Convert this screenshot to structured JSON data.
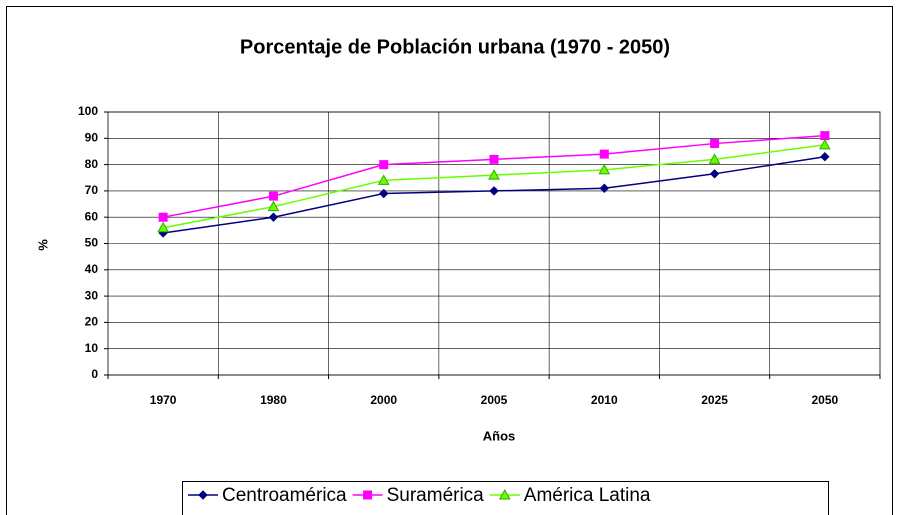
{
  "chart_data": {
    "type": "line",
    "title": "Porcentaje de Población urbana (1970 - 2050)",
    "x_label": "Años",
    "y_label": "%",
    "categories": [
      "1970",
      "1980",
      "2000",
      "2005",
      "2010",
      "2025",
      "2050"
    ],
    "series": [
      {
        "name": "Centroamérica",
        "color": "#000080",
        "marker": "diamond",
        "values": [
          54,
          60,
          69,
          70,
          71,
          76.5,
          83
        ]
      },
      {
        "name": "Suramérica",
        "color": "#ff00ff",
        "marker": "square",
        "values": [
          60,
          68,
          80,
          82,
          84,
          88,
          91
        ]
      },
      {
        "name": "América Latina",
        "color": "#66ff00",
        "marker": "triangle",
        "values": [
          56,
          64,
          74,
          76,
          78,
          82,
          87.5
        ]
      }
    ],
    "ylim": [
      0,
      100
    ],
    "yticks": [
      0,
      10,
      20,
      30,
      40,
      50,
      60,
      70,
      80,
      90,
      100
    ],
    "grid": true
  }
}
